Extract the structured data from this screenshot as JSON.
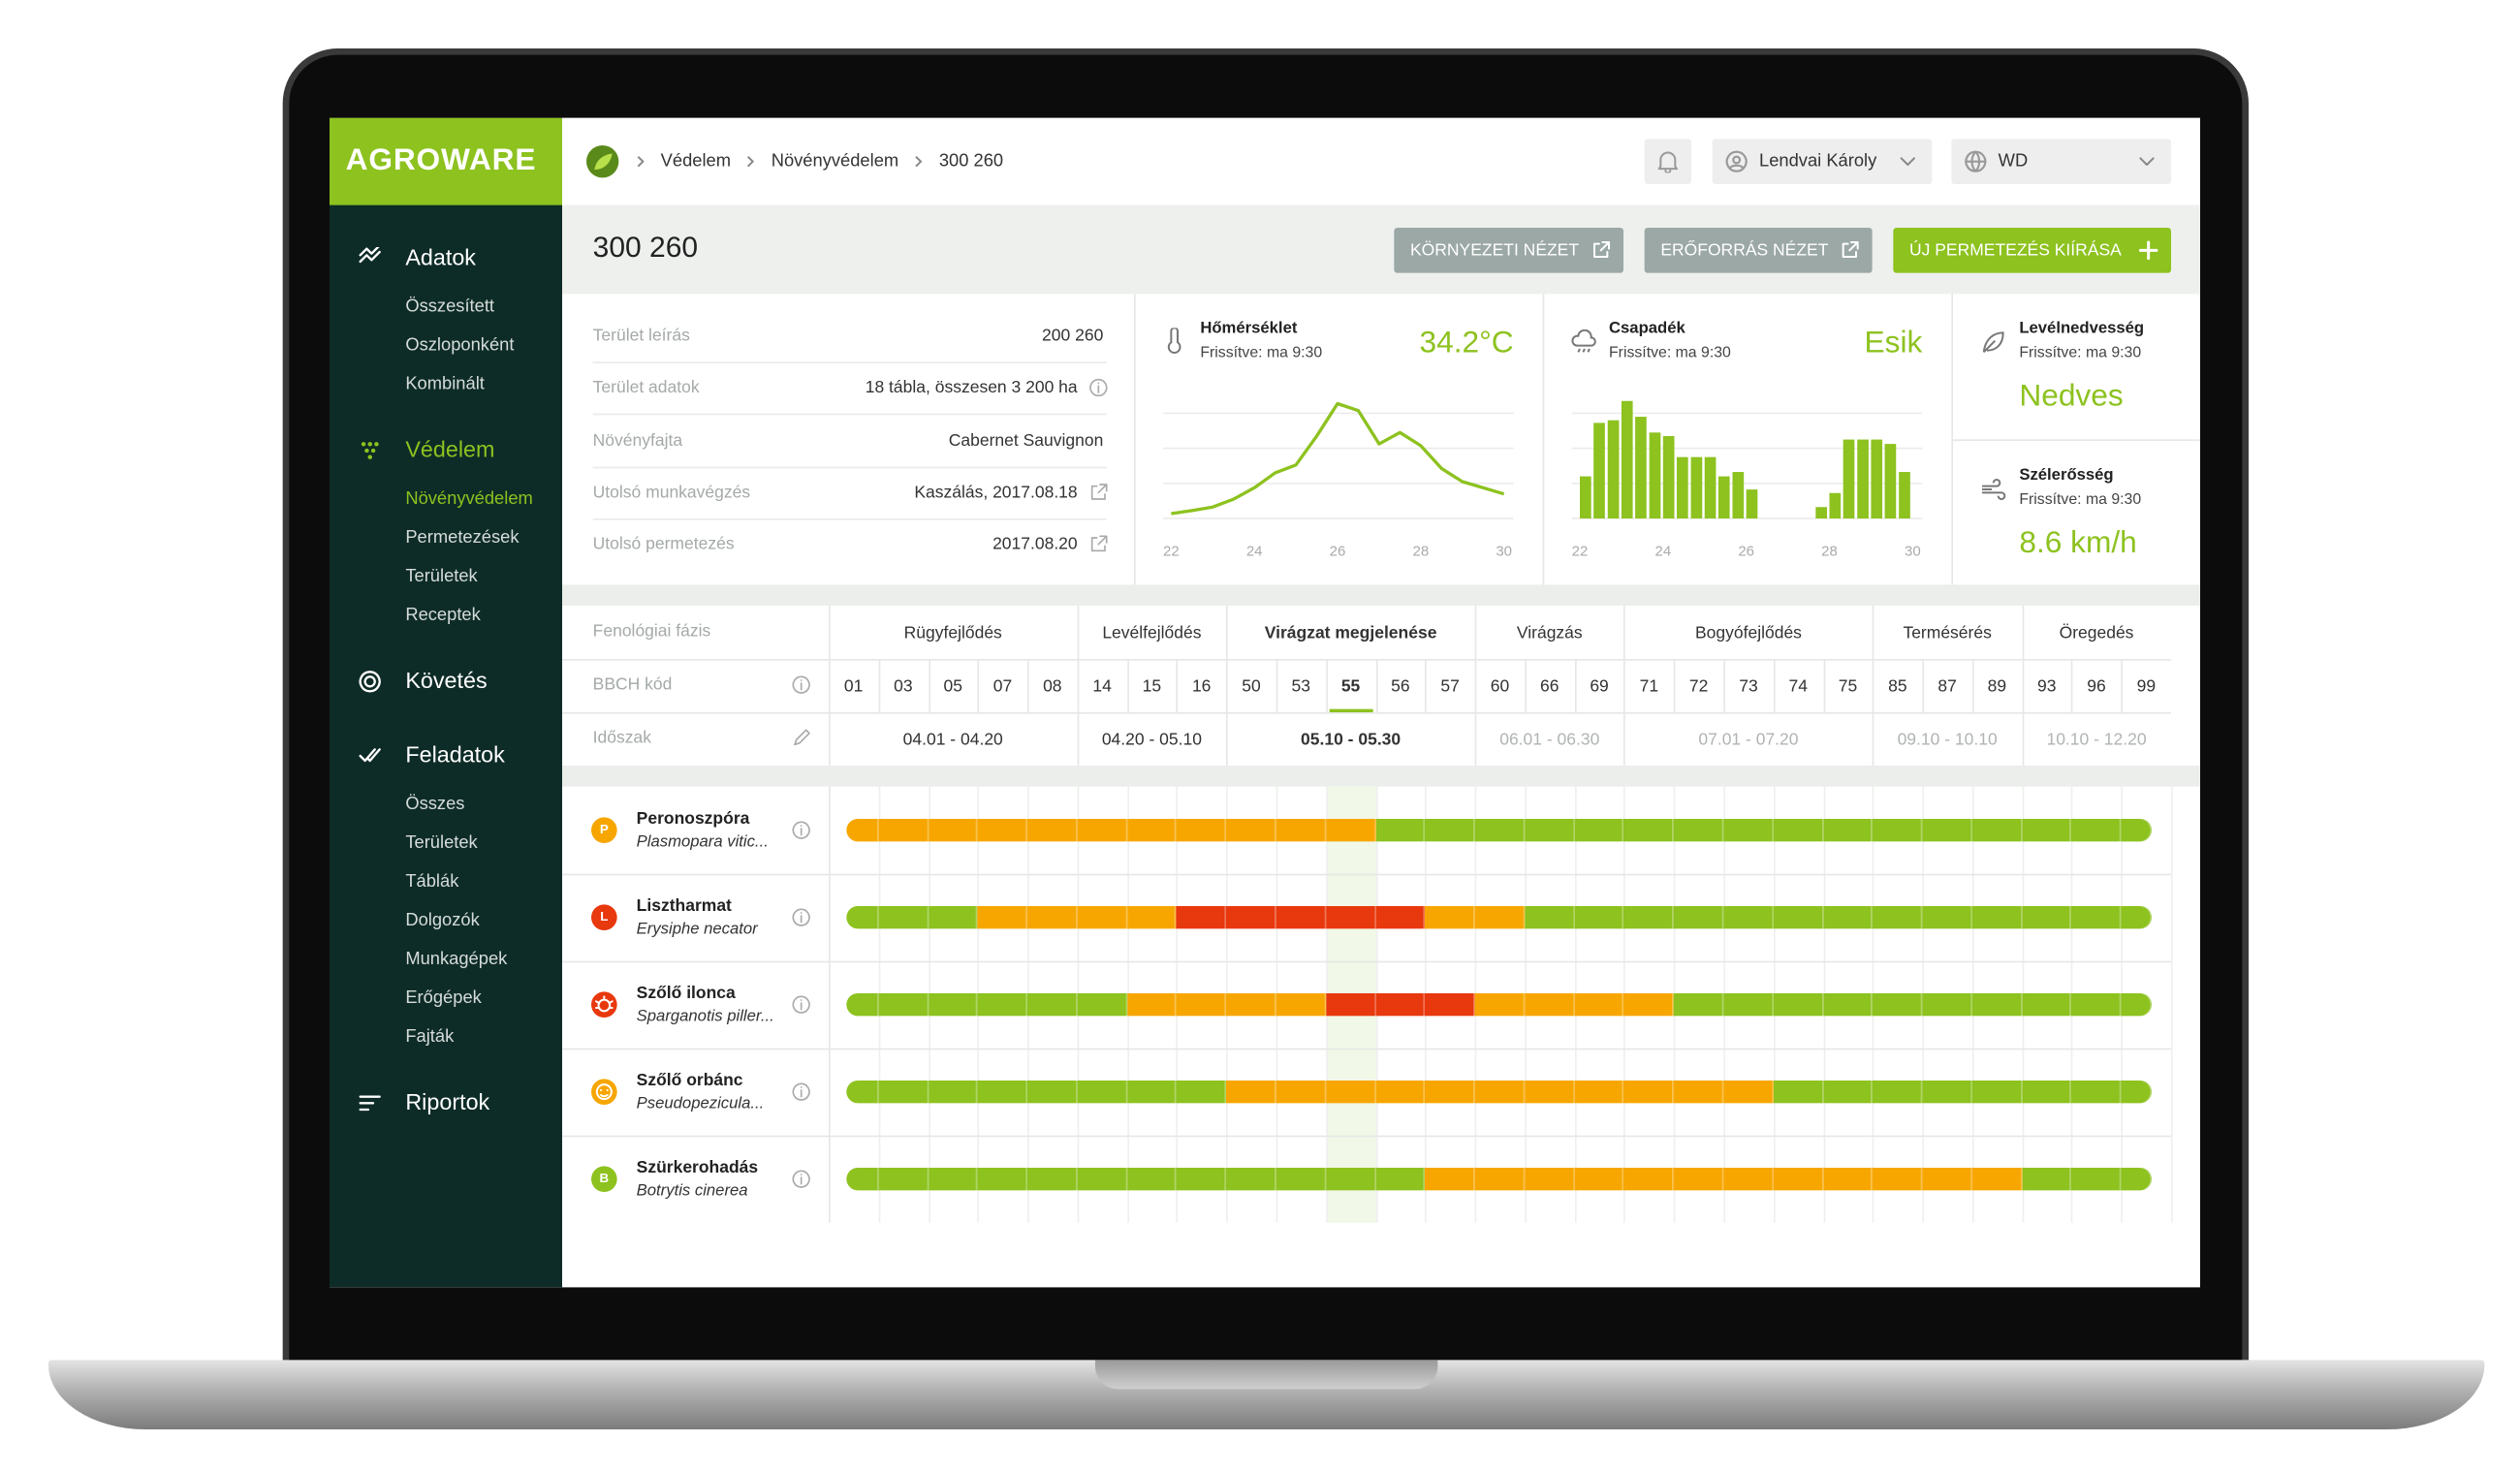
{
  "logo": "AGROWARE",
  "breadcrumb": [
    "Védelem",
    "Növényvédelem",
    "300 260"
  ],
  "user": "Lendvai Károly",
  "organization": "WD",
  "sidebar": [
    {
      "title": "Adatok",
      "active": false,
      "items": [
        "Összesített",
        "Oszloponként",
        "Kombinált"
      ]
    },
    {
      "title": "Védelem",
      "active": true,
      "items": [
        "Növényvédelem",
        "Permetezések",
        "Területek",
        "Receptek"
      ]
    },
    {
      "title": "Követés",
      "active": false,
      "items": []
    },
    {
      "title": "Feladatok",
      "active": false,
      "items": [
        "Összes",
        "Területek",
        "Táblák",
        "Dolgozók",
        "Munkagépek",
        "Erőgépek",
        "Fajták"
      ]
    },
    {
      "title": "Riportok",
      "active": false,
      "items": []
    }
  ],
  "page_title": "300 260",
  "buttons": [
    "KÖRNYEZETI NÉZET",
    "ERŐFORRÁS NÉZET",
    "ÚJ PERMETEZÉS KIÍRÁSA"
  ],
  "info": [
    {
      "label": "Terület leírás",
      "value": "200 260"
    },
    {
      "label": "Terület adatok",
      "value": "18 tábla, összesen 3 200 ha"
    },
    {
      "label": "Növényfajta",
      "value": "Cabernet Sauvignon"
    },
    {
      "label": "Utolsó munkavégzés",
      "value": "Kaszálás, 2017.08.18"
    },
    {
      "label": "Utolsó permetezés",
      "value": "2017.08.20"
    }
  ],
  "weather": {
    "temperature": {
      "title": "Hőmérséklet",
      "updated": "Frissítve: ma 9:30",
      "reading": "34.2°C",
      "chart_data": {
        "type": "line",
        "color": "#8dc21f",
        "x": [
          22,
          22.5,
          23,
          23.5,
          24,
          24.5,
          25,
          25.5,
          26,
          26.5,
          27,
          27.5,
          28,
          28.5,
          29,
          29.5,
          30
        ],
        "values": [
          5.5,
          9,
          13,
          22,
          35,
          52,
          61,
          94,
          131,
          123,
          85,
          98,
          83,
          57,
          42,
          35,
          28
        ],
        "xlim": [
          22,
          30
        ],
        "xticks": [
          22,
          24,
          26,
          28,
          30
        ],
        "ylim": [
          0,
          140
        ],
        "yticks": [
          0,
          40,
          80,
          120
        ],
        "grid": true
      }
    },
    "precipitation": {
      "title": "Csapadék",
      "updated": "Frissítve: ma 9:30",
      "reading": "Esik",
      "chart_data": {
        "type": "bar",
        "color": "#8dc21f",
        "x": [
          22,
          22.33,
          22.67,
          23,
          23.33,
          23.67,
          24,
          24.33,
          24.67,
          25,
          25.33,
          25.67,
          26,
          26.33,
          26.67,
          27,
          27.33,
          27.67,
          28,
          28.33,
          28.67,
          29,
          29.33,
          29.67
        ],
        "values": [
          48,
          109,
          112,
          134,
          116,
          98,
          94,
          70,
          70,
          70,
          48,
          53,
          33,
          0,
          0,
          0,
          0,
          13,
          29,
          90,
          90,
          90,
          85,
          53
        ],
        "xlim": [
          22,
          30
        ],
        "xticks": [
          22,
          24,
          26,
          28,
          30
        ],
        "ylim": [
          0,
          140
        ],
        "yticks": [
          0,
          40,
          80,
          120
        ],
        "grid": true
      }
    },
    "leaf_wetness": {
      "title": "Levélnedvesség",
      "updated": "Frissítve: ma 9:30",
      "reading": "Nedves"
    },
    "wind": {
      "title": "Szélerősség",
      "updated": "Frissítve: ma 9:30",
      "reading": "8.6 km/h"
    }
  },
  "phenology": {
    "labels": [
      "Fenológiai fázis",
      "BBCH kód",
      "Időszak"
    ],
    "phases": [
      {
        "name": "Rügyfejlődés",
        "codes": [
          "01",
          "03",
          "05",
          "07",
          "08"
        ],
        "period": "04.01 - 04.20",
        "status": "past"
      },
      {
        "name": "Levélfejlődés",
        "codes": [
          "14",
          "15",
          "16"
        ],
        "period": "04.20 - 05.10",
        "status": "past"
      },
      {
        "name": "Virágzat megjelenése",
        "codes": [
          "50",
          "53",
          "55",
          "56",
          "57"
        ],
        "period": "05.10 - 05.30",
        "status": "current",
        "active_code": "55"
      },
      {
        "name": "Virágzás",
        "codes": [
          "60",
          "66",
          "69"
        ],
        "period": "06.01 - 06.30",
        "status": "future"
      },
      {
        "name": "Bogyófejlődés",
        "codes": [
          "71",
          "72",
          "73",
          "74",
          "75"
        ],
        "period": "07.01 - 07.20",
        "status": "future"
      },
      {
        "name": "Termésérés",
        "codes": [
          "85",
          "87",
          "89"
        ],
        "period": "09.10 - 10.10",
        "status": "future"
      },
      {
        "name": "Öregedés",
        "codes": [
          "93",
          "96",
          "99"
        ],
        "period": "10.10 - 12.20",
        "status": "future"
      }
    ]
  },
  "risk_colors": {
    "G": "#8dc21f",
    "O": "#f7a600",
    "R": "#e8380d"
  },
  "diseases": [
    {
      "icon": "P",
      "icon_color": "#f7a600",
      "name": "Peronoszpóra",
      "latin": "Plasmopara vitic...",
      "risk": "OOOOOOOOOOOGGGGGGGGGGGGGGGG"
    },
    {
      "icon": "L",
      "icon_color": "#e8380d",
      "name": "Lisztharmat",
      "latin": "Erysiphe necator",
      "risk": "GGGOOOORRRRROOGGGGGGGGGGGGG"
    },
    {
      "icon_color": "#e8380d",
      "name": "Szőlő ilonca",
      "latin": "Sparganotis piller...",
      "risk": "GGGGGGOOOORRROOOOGGGGGGGGGG"
    },
    {
      "icon_color": "#f7a600",
      "name": "Szőlő orbánc",
      "latin": "Pseudopezicula...",
      "risk": "GGGGGGGGOOOOOOOOOOOGGGGGGGG"
    },
    {
      "icon": "B",
      "icon_color": "#8dc21f",
      "name": "Szürkerohadás",
      "latin": "Botrytis cinerea",
      "risk": "GGGGGGGGGGGGOOOOOOOOOOOOGGG"
    }
  ]
}
